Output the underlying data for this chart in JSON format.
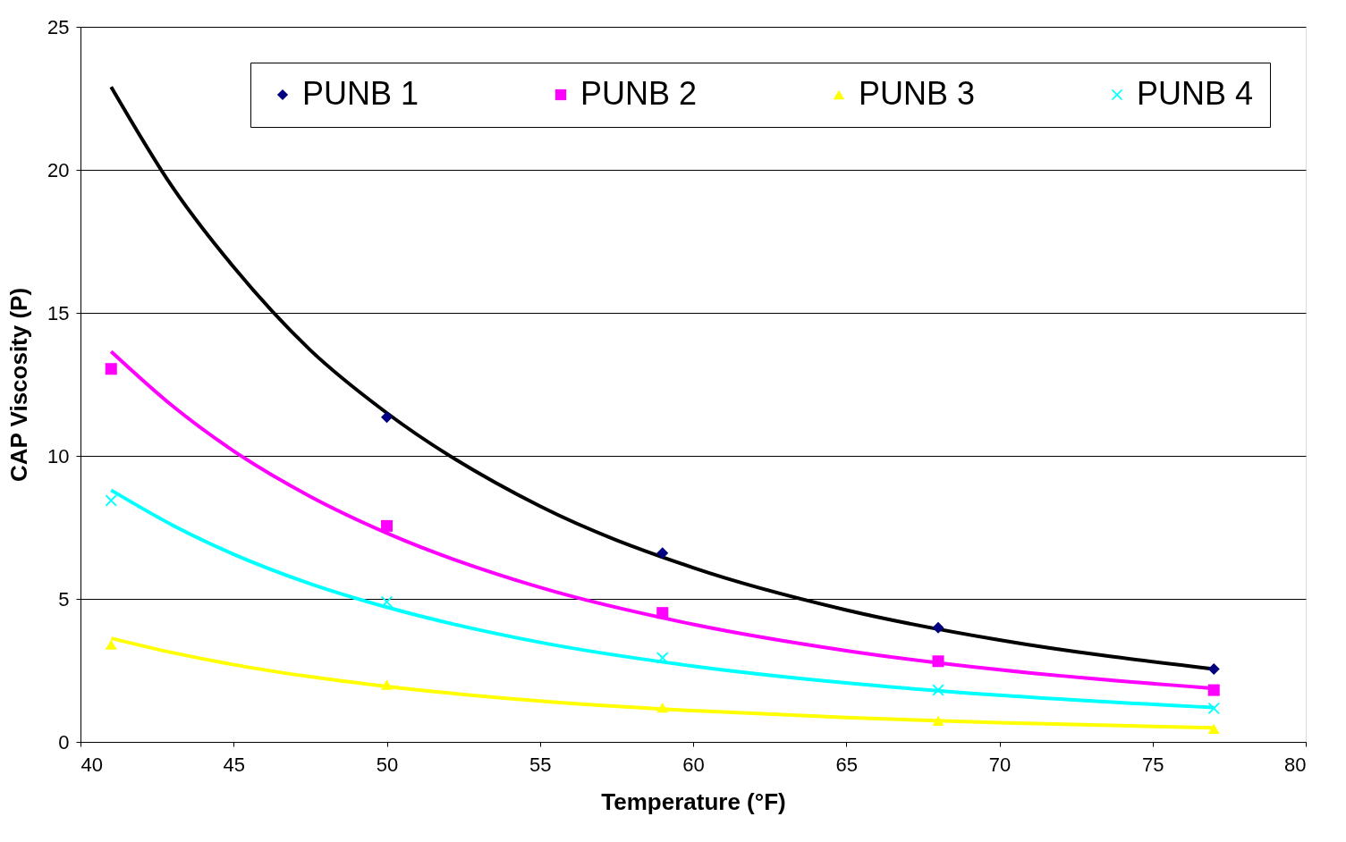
{
  "chart_data": {
    "type": "scatter",
    "xlabel": "Temperature (°F)",
    "ylabel": "CAP Viscosity (P)",
    "xlim": [
      40,
      80
    ],
    "xticks": [
      40,
      45,
      50,
      55,
      60,
      65,
      70,
      75,
      80
    ],
    "ylim": [
      0,
      25
    ],
    "yticks": [
      0,
      5,
      10,
      15,
      20,
      25
    ],
    "grid": "y",
    "legend": "top",
    "series": [
      {
        "name": "PUNB 1",
        "marker": "diamond",
        "color": "#000080",
        "x": [
          50,
          59,
          68,
          77
        ],
        "values": [
          11.35,
          6.6,
          3.99,
          2.55
        ]
      },
      {
        "name": "PUNB 2",
        "marker": "square",
        "color": "#ff00ff",
        "x": [
          41,
          50,
          59,
          68,
          77
        ],
        "values": [
          13.04,
          7.55,
          4.51,
          2.82,
          1.81
        ]
      },
      {
        "name": "PUNB 3",
        "marker": "triangle",
        "color": "#ffff00",
        "x": [
          41,
          50,
          59,
          68,
          77
        ],
        "values": [
          3.4,
          2.0,
          1.2,
          0.74,
          0.46
        ]
      },
      {
        "name": "PUNB 4",
        "marker": "cross",
        "color": "#00ffff",
        "x": [
          41,
          50,
          59,
          68,
          77
        ],
        "values": [
          8.44,
          4.9,
          2.94,
          1.81,
          1.17
        ]
      },
      {
        "type": "line",
        "color": "#000000",
        "x": [
          41,
          43,
          45,
          47.5,
          50,
          55,
          60,
          65,
          70,
          77
        ],
        "values": [
          22.9,
          19.4,
          16.6,
          13.7,
          11.5,
          8.24,
          6.09,
          4.61,
          3.56,
          2.55
        ]
      },
      {
        "type": "line",
        "color": "#ff00ff",
        "x": [
          41,
          43,
          45,
          47.5,
          50,
          55,
          60,
          65,
          70,
          77
        ],
        "values": [
          13.65,
          11.75,
          10.17,
          8.58,
          7.3,
          5.4,
          4.11,
          3.19,
          2.52,
          1.87
        ]
      },
      {
        "type": "line",
        "color": "#ffff00",
        "x": [
          41,
          43,
          45,
          47.5,
          50,
          55,
          60,
          65,
          70,
          77
        ],
        "values": [
          3.62,
          3.12,
          2.7,
          2.28,
          1.94,
          1.43,
          1.09,
          0.85,
          0.67,
          0.49
        ]
      },
      {
        "type": "line",
        "color": "#00ffff",
        "x": [
          41,
          43,
          45,
          47.5,
          50,
          55,
          60,
          65,
          70,
          77
        ],
        "values": [
          8.8,
          7.58,
          6.56,
          5.53,
          4.71,
          3.48,
          2.65,
          2.06,
          1.63,
          1.2
        ]
      }
    ]
  }
}
